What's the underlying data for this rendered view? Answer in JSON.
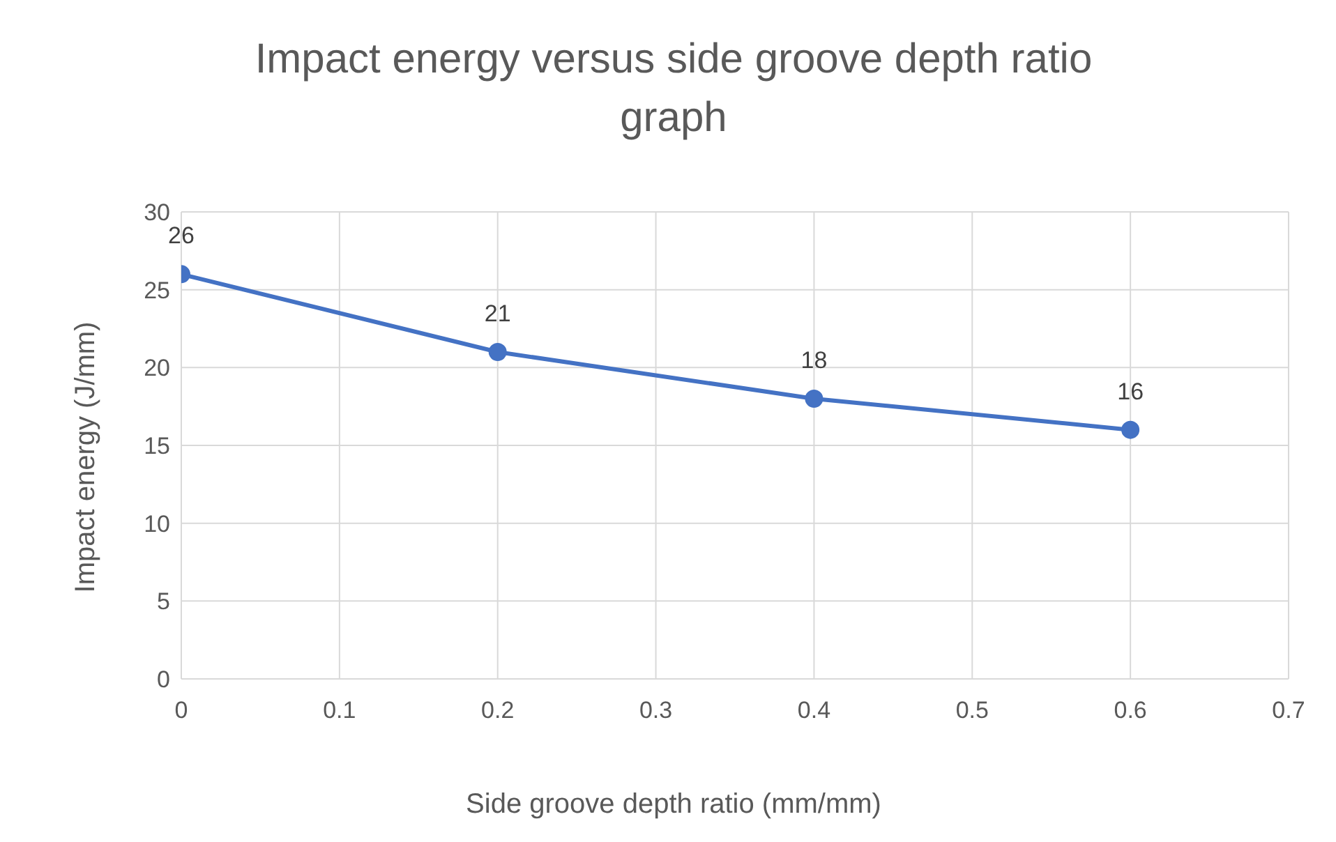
{
  "chart_data": {
    "type": "line",
    "title": "Impact energy versus side groove depth ratio graph",
    "xlabel": "Side groove depth ratio (mm/mm)",
    "ylabel": "Impact energy (J/mm)",
    "x": [
      0,
      0.2,
      0.4,
      0.6
    ],
    "series": [
      {
        "color": "#4472c4",
        "values": [
          26,
          21,
          18,
          16
        ]
      }
    ],
    "xlim": [
      0,
      0.7
    ],
    "xticks": [
      0,
      0.1,
      0.2,
      0.3,
      0.4,
      0.5,
      0.6,
      0.7
    ],
    "ylim": [
      0,
      30
    ],
    "yticks": [
      0,
      5,
      10,
      15,
      20,
      25,
      30
    ],
    "grid": true,
    "marker": "circle",
    "data_labels": true
  }
}
